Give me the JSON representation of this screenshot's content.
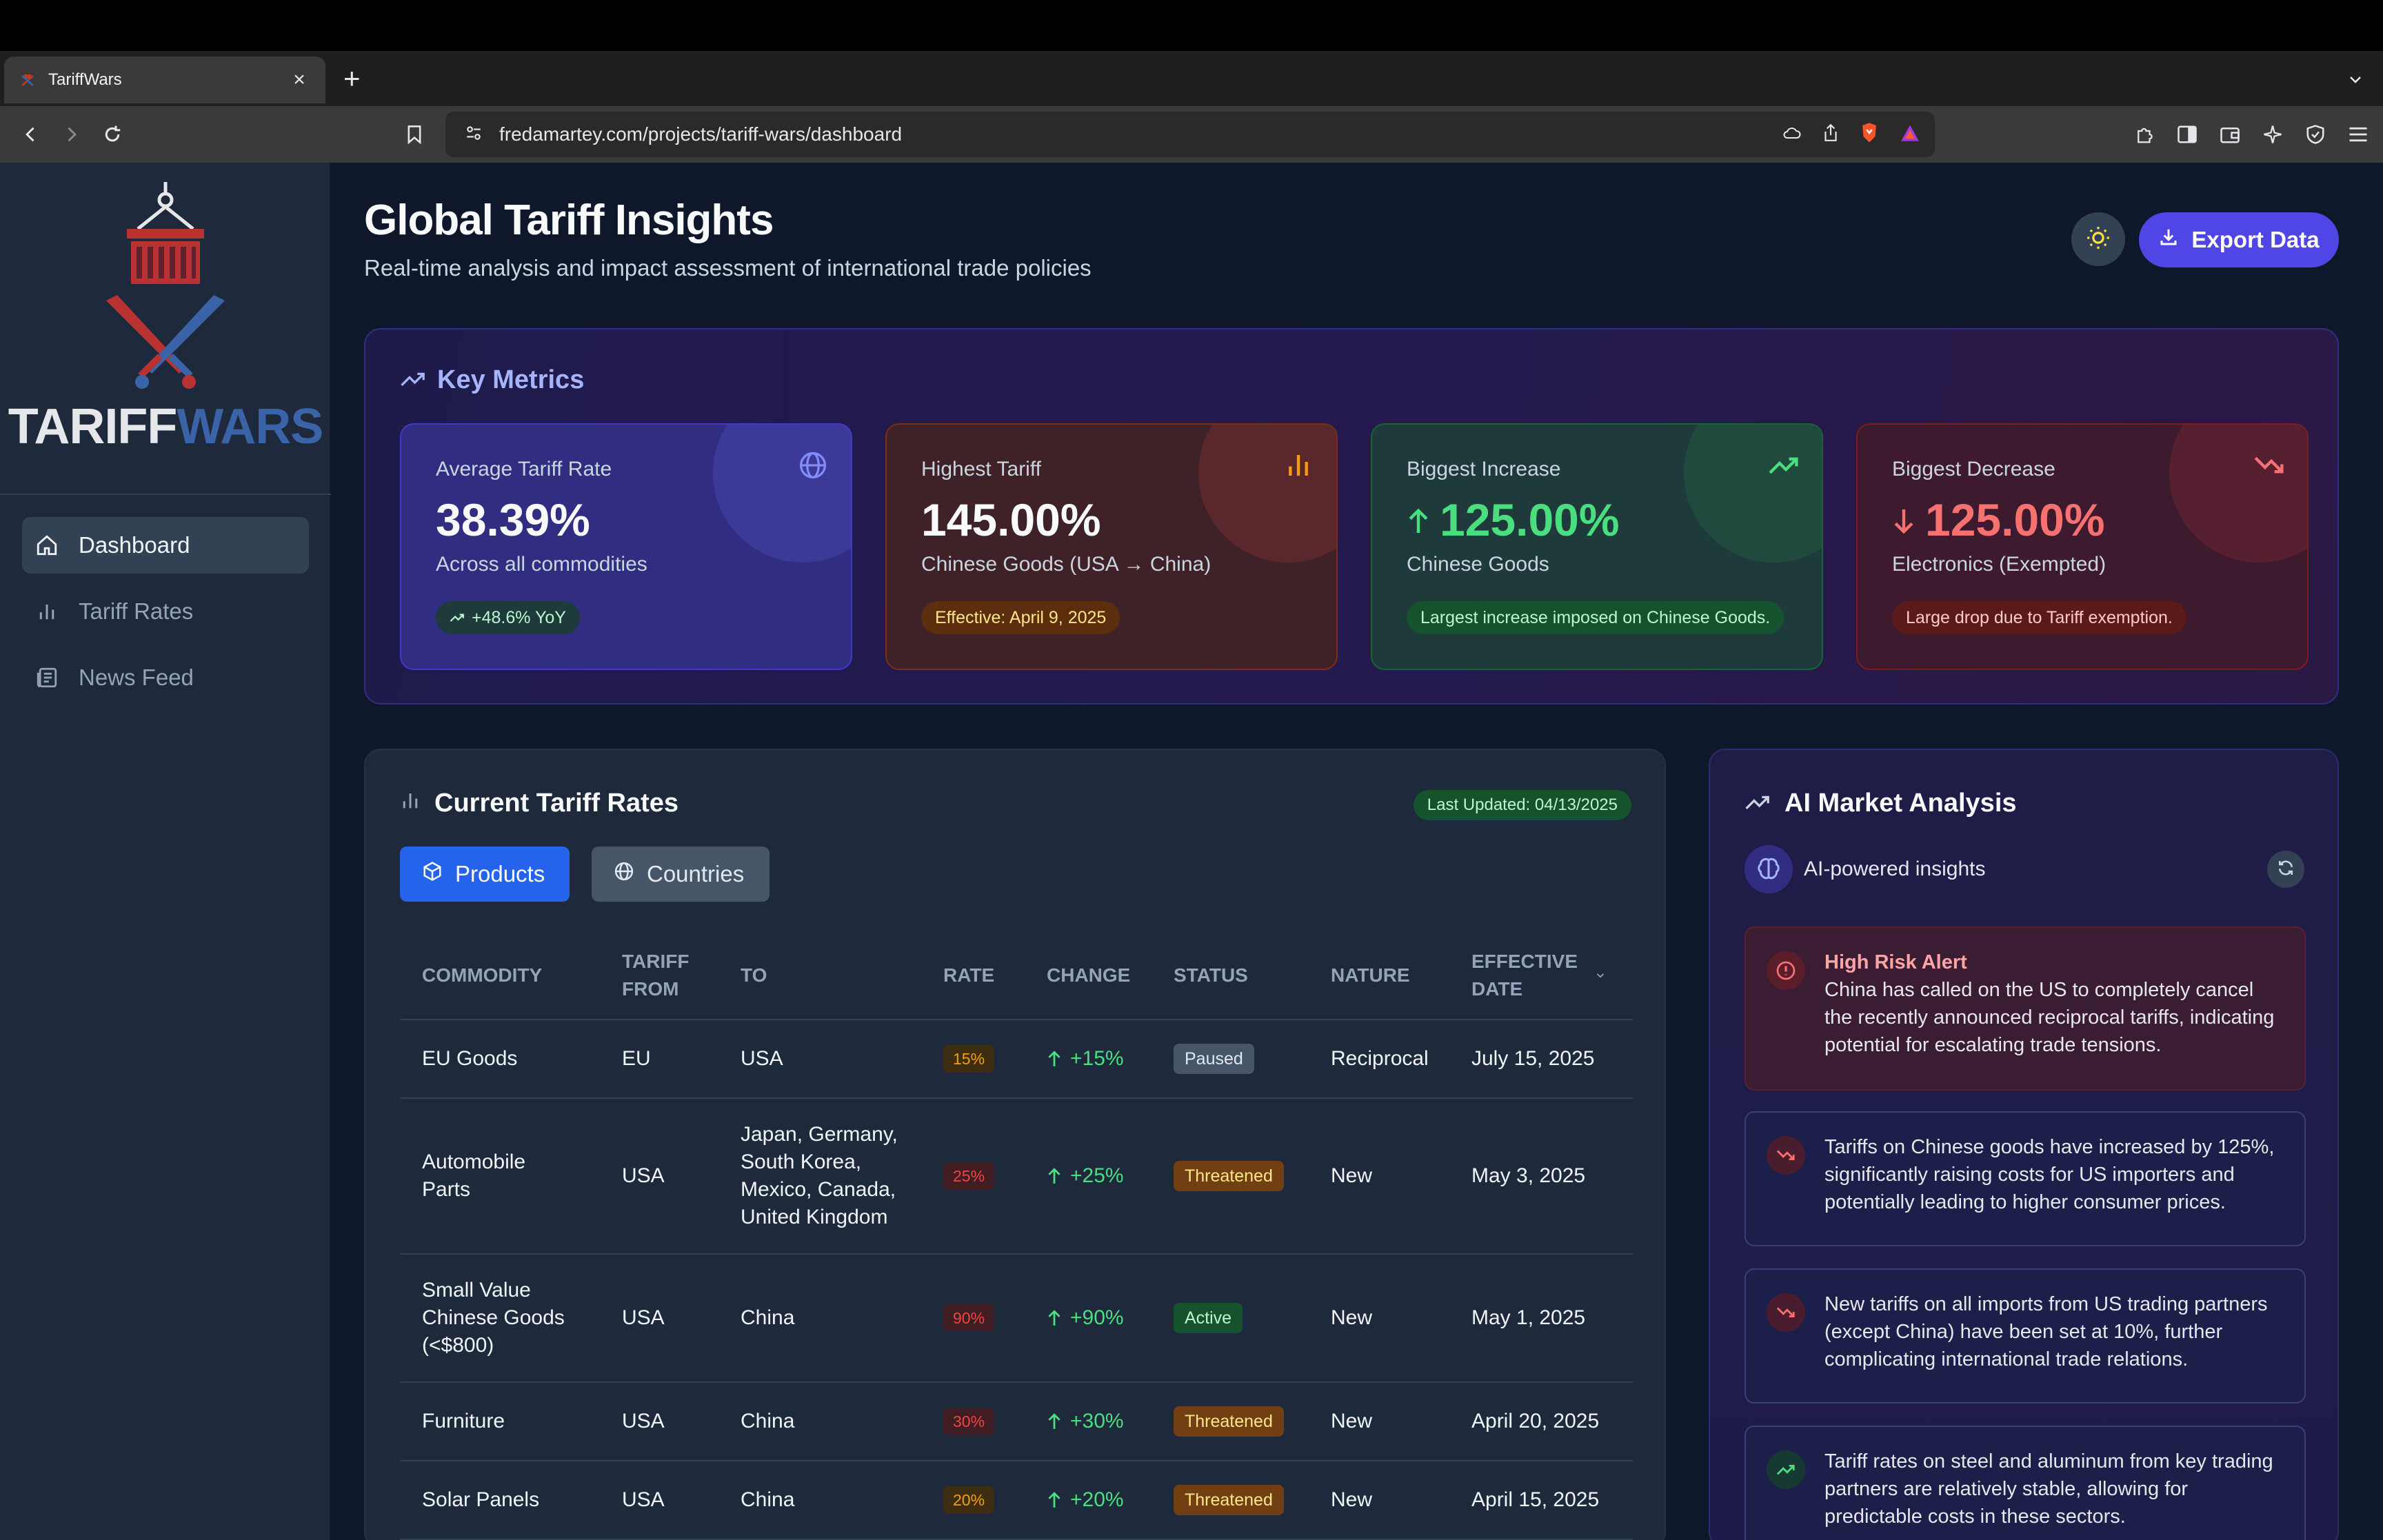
{
  "browser": {
    "tab_title": "TariffWars",
    "new_tab": "+",
    "close_tab": "×",
    "url": "fredamartey.com/projects/tariff-wars/dashboard"
  },
  "sidebar": {
    "logo_part1": "TARIFF",
    "logo_part2": "WARS",
    "items": [
      {
        "label": "Dashboard",
        "icon": "home-icon",
        "active": true
      },
      {
        "label": "Tariff Rates",
        "icon": "bar-chart-icon",
        "active": false
      },
      {
        "label": "News Feed",
        "icon": "newspaper-icon",
        "active": false
      }
    ]
  },
  "header": {
    "title": "Global Tariff Insights",
    "subtitle": "Real-time analysis and impact assessment of international trade policies",
    "export_label": "Export Data"
  },
  "metrics": {
    "title": "Key Metrics",
    "cards": [
      {
        "label": "Average Tariff Rate",
        "value": "38.39%",
        "sub": "Across all commodities",
        "pill": "+48.6% YoY",
        "icon": "globe-icon",
        "accent": "#818cf8"
      },
      {
        "label": "Highest Tariff",
        "value": "145.00%",
        "sub": "Chinese Goods (USA → China)",
        "pill": "Effective: April 9, 2025",
        "icon": "bar-chart-icon",
        "accent": "#f59e0b"
      },
      {
        "label": "Biggest Increase",
        "value": "125.00%",
        "sub": "Chinese Goods",
        "pill": "Largest increase imposed on Chinese Goods.",
        "icon": "trending-up-icon",
        "accent": "#4ade80"
      },
      {
        "label": "Biggest Decrease",
        "value": "125.00%",
        "sub": "Electronics (Exempted)",
        "pill": "Large drop due to Tariff exemption.",
        "icon": "trending-down-icon",
        "accent": "#f87171"
      }
    ]
  },
  "rates": {
    "title": "Current Tariff Rates",
    "updated": "Last Updated: 04/13/2025",
    "tabs": [
      "Products",
      "Countries"
    ],
    "columns": [
      "COMMODITY",
      "TARIFF FROM",
      "TO",
      "RATE",
      "CHANGE",
      "STATUS",
      "NATURE",
      "EFFECTIVE DATE"
    ],
    "rows": [
      {
        "commodity": "EU Goods",
        "from": "EU",
        "to": "USA",
        "rate": "15%",
        "change": "+15%",
        "status": "Paused",
        "nature": "Reciprocal",
        "date": "July 15, 2025"
      },
      {
        "commodity": "Automobile Parts",
        "from": "USA",
        "to": "Japan, Germany, South Korea, Mexico, Canada, United Kingdom",
        "rate": "25%",
        "change": "+25%",
        "status": "Threatened",
        "nature": "New",
        "date": "May 3, 2025"
      },
      {
        "commodity": "Small Value Chinese Goods (<$800)",
        "from": "USA",
        "to": "China",
        "rate": "90%",
        "change": "+90%",
        "status": "Active",
        "nature": "New",
        "date": "May 1, 2025"
      },
      {
        "commodity": "Furniture",
        "from": "USA",
        "to": "China",
        "rate": "30%",
        "change": "+30%",
        "status": "Threatened",
        "nature": "New",
        "date": "April 20, 2025"
      },
      {
        "commodity": "Solar Panels",
        "from": "USA",
        "to": "China",
        "rate": "20%",
        "change": "+20%",
        "status": "Threatened",
        "nature": "New",
        "date": "April 15, 2025"
      }
    ]
  },
  "ai": {
    "title": "AI Market Analysis",
    "subtitle": "AI-powered insights",
    "alert_title": "High Risk Alert",
    "insights": [
      "China has called on the US to completely cancel the recently announced reciprocal tariffs, indicating potential for escalating trade tensions.",
      "Tariffs on Chinese goods have increased by 125%, significantly raising costs for US importers and potentially leading to higher consumer prices.",
      "New tariffs on all imports from US trading partners (except China) have been set at 10%, further complicating international trade relations.",
      "Tariff rates on steel and aluminum from key trading partners are relatively stable, allowing for predictable costs in these sectors."
    ]
  }
}
